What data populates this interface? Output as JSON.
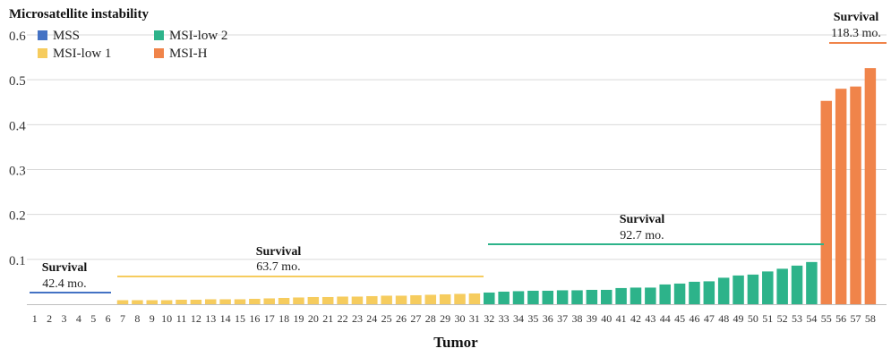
{
  "chart_data": {
    "type": "bar",
    "title": "Microsatellite instability",
    "xlabel": "Tumor",
    "ylabel": "",
    "ylim": [
      0,
      0.6
    ],
    "yticks": [
      "0.6",
      "0.5",
      "0.4",
      "0.3",
      "0.2",
      "0.1"
    ],
    "grid": true,
    "legend_position": "top-left",
    "categories": [
      "1",
      "2",
      "3",
      "4",
      "5",
      "6",
      "7",
      "8",
      "9",
      "10",
      "11",
      "12",
      "13",
      "14",
      "15",
      "16",
      "17",
      "18",
      "19",
      "20",
      "21",
      "22",
      "23",
      "24",
      "25",
      "26",
      "27",
      "28",
      "29",
      "30",
      "31",
      "32",
      "33",
      "34",
      "35",
      "36",
      "37",
      "38",
      "39",
      "40",
      "41",
      "42",
      "43",
      "44",
      "45",
      "46",
      "47",
      "48",
      "49",
      "50",
      "51",
      "52",
      "53",
      "54",
      "55",
      "56",
      "57",
      "58"
    ],
    "values": [
      0,
      0,
      0,
      0,
      0,
      0,
      0.009,
      0.009,
      0.009,
      0.009,
      0.01,
      0.01,
      0.011,
      0.011,
      0.011,
      0.012,
      0.013,
      0.014,
      0.015,
      0.016,
      0.016,
      0.017,
      0.017,
      0.018,
      0.019,
      0.019,
      0.02,
      0.021,
      0.022,
      0.023,
      0.024,
      0.026,
      0.028,
      0.029,
      0.03,
      0.03,
      0.031,
      0.031,
      0.032,
      0.032,
      0.036,
      0.037,
      0.037,
      0.044,
      0.046,
      0.05,
      0.051,
      0.059,
      0.064,
      0.066,
      0.073,
      0.079,
      0.086,
      0.094,
      0.453,
      0.48,
      0.485,
      0.526
    ],
    "series_group": [
      0,
      0,
      0,
      0,
      0,
      0,
      1,
      1,
      1,
      1,
      1,
      1,
      1,
      1,
      1,
      1,
      1,
      1,
      1,
      1,
      1,
      1,
      1,
      1,
      1,
      1,
      1,
      1,
      1,
      1,
      1,
      2,
      2,
      2,
      2,
      2,
      2,
      2,
      2,
      2,
      2,
      2,
      2,
      2,
      2,
      2,
      2,
      2,
      2,
      2,
      2,
      2,
      2,
      2,
      3,
      3,
      3,
      3
    ],
    "series": [
      {
        "name": "MSS",
        "color": "#4472c4",
        "first": 1,
        "last": 6
      },
      {
        "name": "MSI-low 1",
        "color": "#f6cc5e",
        "first": 7,
        "last": 31
      },
      {
        "name": "MSI-low 2",
        "color": "#2db38a",
        "first": 32,
        "last": 54
      },
      {
        "name": "MSI-H",
        "color": "#f0844a",
        "first": 55,
        "last": 58
      }
    ],
    "annotations": [
      {
        "label": "Survival",
        "value": "42.4 mo.",
        "series": 0
      },
      {
        "label": "Survival",
        "value": "63.7 mo.",
        "series": 1
      },
      {
        "label": "Survival",
        "value": "92.7 mo.",
        "series": 2
      },
      {
        "label": "Survival",
        "value": "118.3 mo.",
        "series": 3
      }
    ]
  }
}
